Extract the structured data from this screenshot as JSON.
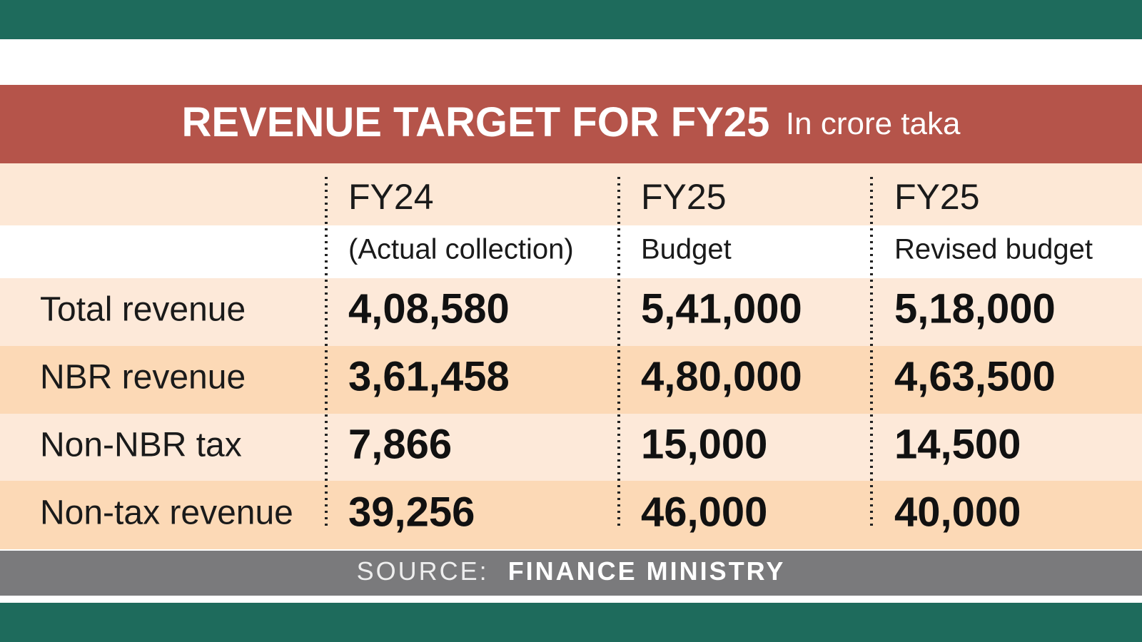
{
  "title": "REVENUE TARGET FOR FY25",
  "subtitle": "In crore taka",
  "columns": [
    {
      "year": "FY24",
      "note": "(Actual collection)"
    },
    {
      "year": "FY25",
      "note": "Budget"
    },
    {
      "year": "FY25",
      "note": "Revised budget"
    }
  ],
  "rows": [
    {
      "label": "Total revenue",
      "values": [
        "4,08,580",
        "5,41,000",
        "5,18,000"
      ]
    },
    {
      "label": "NBR revenue",
      "values": [
        "3,61,458",
        "4,80,000",
        "4,63,500"
      ]
    },
    {
      "label": "Non-NBR tax",
      "values": [
        "7,866",
        "15,000",
        "14,500"
      ]
    },
    {
      "label": "Non-tax revenue",
      "values": [
        "39,256",
        "46,000",
        "40,000"
      ]
    }
  ],
  "source": {
    "label": "SOURCE:",
    "value": "FINANCE MINISTRY"
  }
}
